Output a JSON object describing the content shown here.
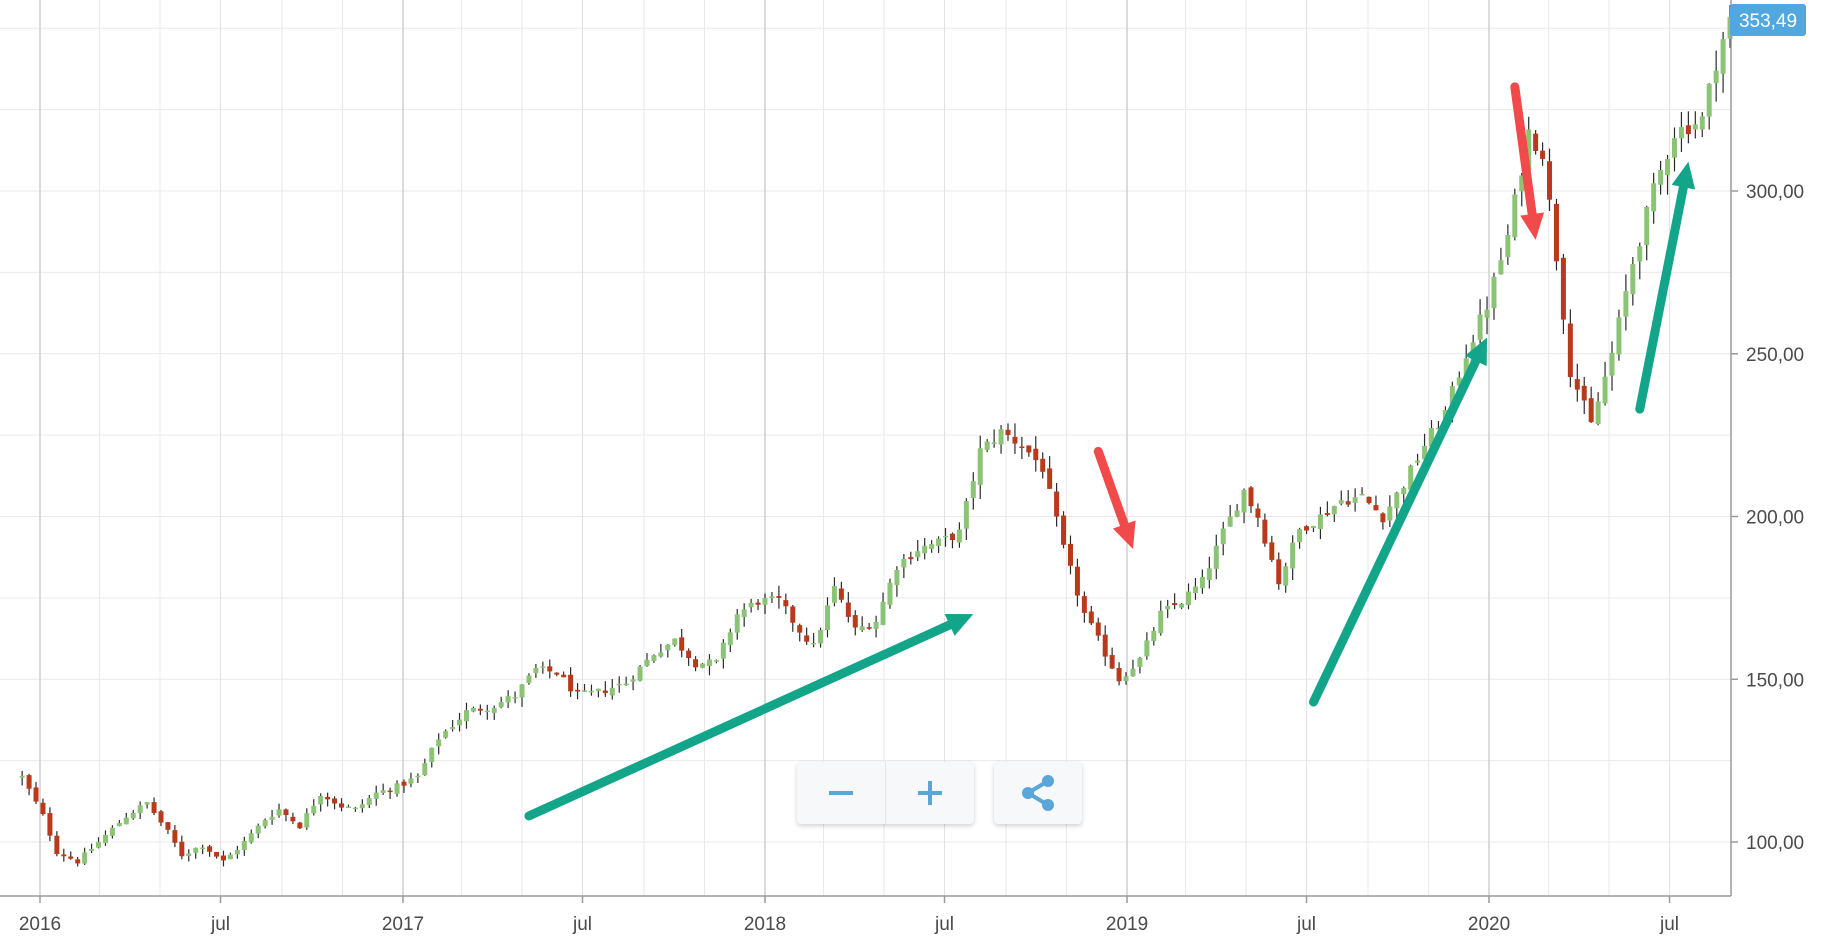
{
  "chart_data": {
    "type": "candlestick",
    "x_axis": {
      "tick_labels": [
        "2016",
        "jul",
        "2017",
        "jul",
        "2018",
        "jul",
        "2019",
        "jul",
        "2020",
        "jul"
      ],
      "tick_dates": [
        "2016-01-01",
        "2016-07-01",
        "2017-01-01",
        "2017-07-01",
        "2018-01-01",
        "2018-07-01",
        "2019-01-01",
        "2019-07-01",
        "2020-01-01",
        "2020-07-01"
      ]
    },
    "y_axis": {
      "position": "right",
      "tick_labels": [
        "100,00",
        "150,00",
        "200,00",
        "250,00",
        "300,00"
      ],
      "tick_values": [
        100,
        150,
        200,
        250,
        300
      ],
      "range": [
        83,
        365
      ]
    },
    "grid": true,
    "last_price_label": "353,49",
    "colors": {
      "up": "#8cc475",
      "down": "#b83a1a",
      "wick": "#2b2b2b",
      "label_bg": "#51a8e0",
      "grid": "#e9e9e9"
    },
    "weekly_close_points": [
      [
        "2015-12-14",
        120
      ],
      [
        "2016-01-04",
        108
      ],
      [
        "2016-01-18",
        97
      ],
      [
        "2016-02-08",
        94
      ],
      [
        "2016-02-29",
        100
      ],
      [
        "2016-03-28",
        108
      ],
      [
        "2016-04-18",
        112
      ],
      [
        "2016-05-09",
        103
      ],
      [
        "2016-05-23",
        96
      ],
      [
        "2016-06-13",
        99
      ],
      [
        "2016-07-04",
        94
      ],
      [
        "2016-07-25",
        100
      ],
      [
        "2016-08-15",
        107
      ],
      [
        "2016-08-29",
        110
      ],
      [
        "2016-09-19",
        105
      ],
      [
        "2016-10-10",
        115
      ],
      [
        "2016-10-31",
        111
      ],
      [
        "2016-11-14",
        110
      ],
      [
        "2016-12-05",
        115
      ],
      [
        "2016-12-26",
        117
      ],
      [
        "2017-01-16",
        120
      ],
      [
        "2017-02-06",
        132
      ],
      [
        "2017-03-06",
        140
      ],
      [
        "2017-04-03",
        142
      ],
      [
        "2017-04-24",
        145
      ],
      [
        "2017-05-15",
        153
      ],
      [
        "2017-06-05",
        152
      ],
      [
        "2017-06-26",
        145
      ],
      [
        "2017-07-17",
        146
      ],
      [
        "2017-08-14",
        149
      ],
      [
        "2017-09-11",
        158
      ],
      [
        "2017-10-02",
        162
      ],
      [
        "2017-10-23",
        155
      ],
      [
        "2017-11-13",
        155
      ],
      [
        "2017-12-04",
        170
      ],
      [
        "2017-12-25",
        174
      ],
      [
        "2018-01-15",
        174
      ],
      [
        "2018-02-05",
        165
      ],
      [
        "2018-02-19",
        160
      ],
      [
        "2018-03-12",
        178
      ],
      [
        "2018-04-02",
        165
      ],
      [
        "2018-04-23",
        168
      ],
      [
        "2018-05-14",
        185
      ],
      [
        "2018-06-04",
        190
      ],
      [
        "2018-06-25",
        192
      ],
      [
        "2018-07-16",
        195
      ],
      [
        "2018-08-06",
        220
      ],
      [
        "2018-08-27",
        226
      ],
      [
        "2018-09-17",
        222
      ],
      [
        "2018-10-08",
        215
      ],
      [
        "2018-10-29",
        190
      ],
      [
        "2018-11-19",
        170
      ],
      [
        "2018-12-10",
        158
      ],
      [
        "2018-12-24",
        150
      ],
      [
        "2019-01-14",
        156
      ],
      [
        "2019-02-04",
        170
      ],
      [
        "2019-02-25",
        174
      ],
      [
        "2019-03-18",
        180
      ],
      [
        "2019-04-08",
        195
      ],
      [
        "2019-04-29",
        208
      ],
      [
        "2019-05-13",
        200
      ],
      [
        "2019-06-03",
        180
      ],
      [
        "2019-06-24",
        196
      ],
      [
        "2019-07-15",
        200
      ],
      [
        "2019-08-05",
        205
      ],
      [
        "2019-08-26",
        206
      ],
      [
        "2019-09-16",
        200
      ],
      [
        "2019-10-07",
        210
      ],
      [
        "2019-10-28",
        222
      ],
      [
        "2019-11-18",
        232
      ],
      [
        "2019-12-09",
        250
      ],
      [
        "2019-12-30",
        265
      ],
      [
        "2020-01-20",
        286
      ],
      [
        "2020-02-10",
        318
      ],
      [
        "2020-02-24",
        312
      ],
      [
        "2020-03-09",
        280
      ],
      [
        "2020-03-23",
        245
      ],
      [
        "2020-04-13",
        228
      ],
      [
        "2020-05-04",
        250
      ],
      [
        "2020-05-25",
        278
      ],
      [
        "2020-06-15",
        300
      ],
      [
        "2020-07-06",
        318
      ],
      [
        "2020-08-03",
        322
      ],
      [
        "2020-08-17",
        340
      ],
      [
        "2020-08-31",
        353.49
      ]
    ],
    "annotations": [
      {
        "type": "arrow",
        "color": "#13a589",
        "from": [
          "2017-05-08",
          108
        ],
        "to": [
          "2018-07-30",
          170
        ]
      },
      {
        "type": "arrow",
        "color": "#f04a4a",
        "from": [
          "2018-12-03",
          220
        ],
        "to": [
          "2019-01-07",
          190
        ]
      },
      {
        "type": "arrow",
        "color": "#13a589",
        "from": [
          "2019-07-08",
          143
        ],
        "to": [
          "2019-12-30",
          255
        ]
      },
      {
        "type": "arrow",
        "color": "#f04a4a",
        "from": [
          "2020-01-27",
          332
        ],
        "to": [
          "2020-02-17",
          285
        ]
      },
      {
        "type": "arrow",
        "color": "#13a589",
        "from": [
          "2020-06-01",
          233
        ],
        "to": [
          "2020-07-20",
          309
        ]
      }
    ]
  },
  "controls": {
    "zoom_out": {
      "icon": "minus-icon"
    },
    "zoom_in": {
      "icon": "plus-icon"
    },
    "share": {
      "icon": "share-icon"
    },
    "icon_color": "#5aa6d8"
  }
}
